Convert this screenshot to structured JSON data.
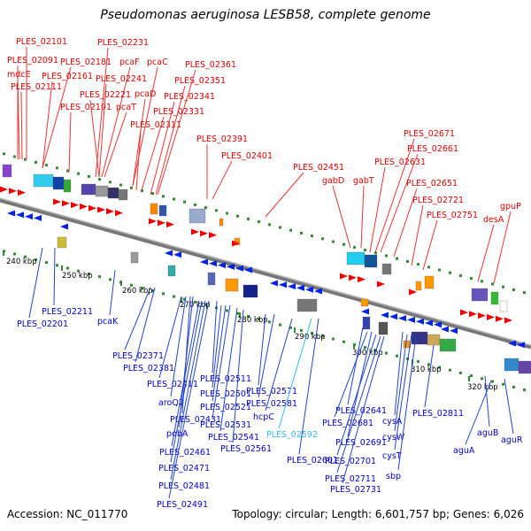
{
  "title": "Pseudomonas aeruginosa LESB58, complete genome",
  "footer": {
    "accession": "Accession: NC_011770",
    "topology": "Topology: circular; Length: 6,601,757 bp; Genes: 6,026"
  },
  "colors": {
    "forward_label": "#dd0000",
    "reverse_label": "#0000cc",
    "highlight_label": "#33bbee",
    "forward_arrow": "#ee0000",
    "reverse_arrow": "#0022ee",
    "backbone": "#888888",
    "tick": "#2e8b2e",
    "leader_fwd": "#ee3333",
    "leader_rev": "#2244cc"
  },
  "ticks": [
    "240 kbp",
    "250 kbp",
    "260 kbp",
    "270 kbp",
    "280 kbp",
    "290 kbp",
    "300 kbp",
    "310 kbp",
    "320 kbp"
  ],
  "forward_labels": [
    "PLES_02101",
    "PLES_02091",
    "mdcE",
    "PLES_02111",
    "PLES_02181",
    "PLES_02161",
    "PLES_02191",
    "PLES_02231",
    "pcaF",
    "PLES_02241",
    "PLES_02221",
    "pcaT",
    "pcaC",
    "pcaD",
    "PLES_02311",
    "PLES_02331",
    "PLES_02341",
    "PLES_02351",
    "PLES_02361",
    "PLES_02391",
    "PLES_02401",
    "PLES_02451",
    "gabD",
    "gabT",
    "PLES_02671",
    "PLES_02661",
    "PLES_02631",
    "PLES_02651",
    "PLES_02721",
    "PLES_02751",
    "desA",
    "gpuP"
  ],
  "reverse_labels": [
    "PLES_02211",
    "PLES_02201",
    "pcaK",
    "PLES_02371",
    "PLES_02381",
    "PLES_02411",
    "aroQ2",
    "PLES_02431",
    "pobA",
    "PLES_02461",
    "PLES_02471",
    "PLES_02481",
    "PLES_02491",
    "PLES_02511",
    "PLES_02501",
    "PLES_02521",
    "PLES_02531",
    "PLES_02541",
    "PLES_02561",
    "PLES_02571",
    "PLES_02581",
    "hcpC",
    "PLES_02592",
    "PLES_02601",
    "PLES_02641",
    "PLES_02681",
    "PLES_02691",
    "PLES_02701",
    "PLES_02711",
    "PLES_02731",
    "cysA",
    "cysW",
    "cysT",
    "sbp",
    "PLES_02811",
    "aguB",
    "aguR",
    "aguA"
  ]
}
